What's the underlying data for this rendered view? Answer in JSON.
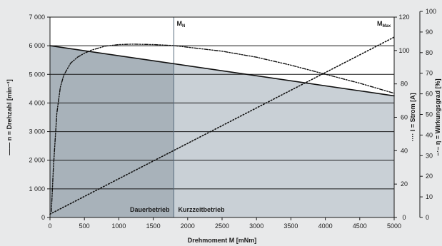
{
  "chart_data": {
    "type": "line",
    "xlabel": "Drehmoment M [mNm]",
    "x_ticks": [
      "0",
      "500",
      "1000",
      "1500",
      "2000",
      "2500",
      "3000",
      "3500",
      "4000",
      "4500",
      "5000"
    ],
    "xlim": [
      0,
      5000
    ],
    "axes": {
      "speed": {
        "label": "n = Drehzahl [min⁻¹]",
        "range": [
          0,
          7000
        ],
        "ticks": [
          "0",
          "1 000",
          "2 000",
          "3 000",
          "4 000",
          "5 000",
          "6 000",
          "7 000"
        ]
      },
      "current": {
        "label": "I = Strom [A]",
        "range": [
          0,
          120
        ],
        "ticks": [
          "0",
          "20",
          "40",
          "60",
          "80",
          "100",
          "120"
        ]
      },
      "efficiency": {
        "label": "η = Wirkungsgrad [%]",
        "range": [
          0,
          100
        ],
        "ticks": [
          "0",
          "10",
          "20",
          "30",
          "40",
          "50",
          "60",
          "70",
          "80",
          "90",
          "100"
        ]
      }
    },
    "grid": true,
    "markers": [
      {
        "label": "M",
        "subscript": "N",
        "x": 1800
      },
      {
        "label": "M",
        "subscript": "Max",
        "x": 5000
      }
    ],
    "regions": [
      {
        "label": "Dauerbetrieb",
        "x": [
          0,
          1800
        ],
        "color": "#a8b2ba"
      },
      {
        "label": "Kurzzeitbetrieb",
        "x": [
          1800,
          5000
        ],
        "color": "#c9d0d6"
      }
    ],
    "series": [
      {
        "name": "n = Drehzahl [min⁻¹]",
        "axis": "speed",
        "style": "solid",
        "x": [
          0,
          5000
        ],
        "y": [
          6000,
          4250
        ]
      },
      {
        "name": "I = Strom [A]",
        "axis": "current",
        "style": "dotted",
        "x": [
          0,
          5000
        ],
        "y": [
          2,
          108
        ]
      },
      {
        "name": "η = Wirkungsgrad [%]",
        "axis": "efficiency",
        "style": "dashdot",
        "x": [
          20,
          50,
          100,
          150,
          200,
          300,
          400,
          500,
          600,
          700,
          800,
          1000,
          1200,
          1500,
          1800,
          2000,
          2500,
          3000,
          3500,
          4000,
          4500,
          5000
        ],
        "y": [
          3,
          25,
          52,
          65,
          71,
          77,
          80,
          82,
          83.5,
          84.5,
          85.5,
          86.3,
          86.5,
          86.3,
          85.8,
          85,
          83,
          80,
          76,
          71.5,
          67,
          62
        ]
      }
    ]
  }
}
